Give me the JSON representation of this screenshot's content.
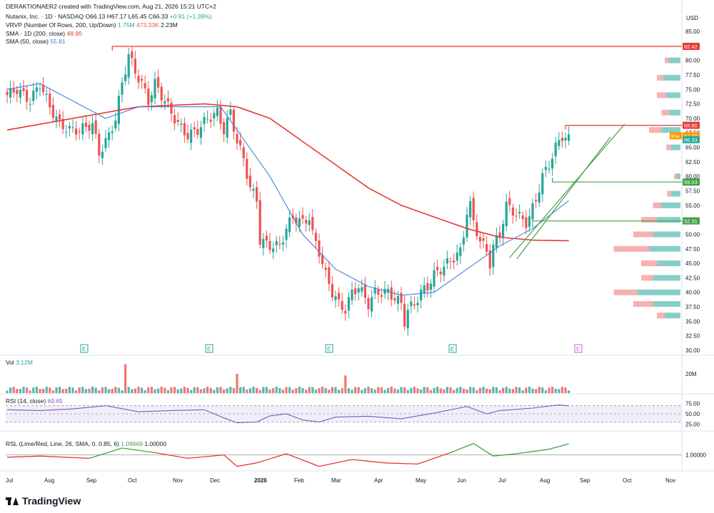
{
  "header": {
    "created_line": "DERAKTIONAER2 created with TradingView.com, Aug 21, 2026 15:21 UTC+2",
    "symbol_line": "Nutanix, Inc. · 1D · NASDAQ",
    "ohlc": {
      "open": "O66.13",
      "high": "H67.17",
      "low": "L65.45",
      "close": "C66.33",
      "change": "+0.91 (+1.39%)"
    },
    "vrvp_label": "VRVP (Number Of Rows, 200, Up/Down)",
    "vrvp_up": "1.75M",
    "vrvp_down": "473.33K",
    "vrvp_total": "2.23M",
    "sma200_label": "SMA · 1D (200, close)",
    "sma200_value": "48.90",
    "sma50_label": "SMA (50, close)",
    "sma50_value": "55.81"
  },
  "colors": {
    "up": "#26a69a",
    "down": "#ef5350",
    "sma200": "#e53935",
    "sma50": "#4a7fd6",
    "rsi": "#7e57c2",
    "rsl_up": "#43a047",
    "rsl_down": "#e53935",
    "level_red": "#e53935",
    "level_green": "#43a047",
    "pre": "#ff9800",
    "last": "#26a69a"
  },
  "price_axis": {
    "currency": "USD",
    "ticks": [
      "85.00",
      "82.50",
      "80.00",
      "77.50",
      "75.00",
      "72.50",
      "70.00",
      "67.50",
      "65.00",
      "62.50",
      "60.00",
      "57.50",
      "55.00",
      "52.50",
      "50.00",
      "47.50",
      "45.00",
      "42.50",
      "40.00",
      "37.50",
      "35.00",
      "32.50",
      "30.00"
    ],
    "badges": [
      {
        "label": "82.42",
        "value": 82.42,
        "kind": "red"
      },
      {
        "label": "68.80",
        "value": 68.8,
        "kind": "red"
      },
      {
        "label": "67.00",
        "value": 67.0,
        "kind": "pre",
        "tag": "Pre"
      },
      {
        "label": "66.33",
        "value": 66.33,
        "kind": "last"
      },
      {
        "label": "59.03",
        "value": 59.03,
        "kind": "green"
      },
      {
        "label": "52.31",
        "value": 52.31,
        "kind": "green"
      }
    ]
  },
  "time_axis": [
    "Jul",
    "Aug",
    "Sep",
    "Oct",
    "Nov",
    "Dec",
    "2026",
    "Feb",
    "Mar",
    "Apr",
    "May",
    "Jun",
    "Jul",
    "Aug",
    "Sep",
    "Oct",
    "Nov"
  ],
  "earnings_markers": [
    "E",
    "E",
    "E",
    "E",
    "E"
  ],
  "volume": {
    "label": "Vol",
    "value": "3.12M",
    "axis_tick": "20M"
  },
  "rsi": {
    "label": "RSI (14, close)",
    "value": "69.65",
    "ticks": [
      "75.00",
      "50.00",
      "25.00"
    ],
    "upper": 70,
    "lower": 30
  },
  "rsl": {
    "label": "RSL (Lime/Red, Line, 26, SMA, 0, 0.85, 6)",
    "value1": "1.09669",
    "value2": "1.00000",
    "tick": "1.00000"
  },
  "footer": {
    "brand": "TradingView"
  },
  "chart_data": {
    "type": "candlestick",
    "title": "Nutanix, Inc. · 1D · NASDAQ",
    "ylim": [
      30,
      86
    ],
    "x": [
      "2025-07",
      "2025-08",
      "2025-09",
      "2025-10",
      "2025-11",
      "2025-12",
      "2026-01",
      "2026-02",
      "2026-03",
      "2026-04",
      "2026-05",
      "2026-06",
      "2026-07",
      "2026-08"
    ],
    "close_path": [
      [
        0,
        74
      ],
      [
        3,
        75
      ],
      [
        7,
        73
      ],
      [
        10,
        76
      ],
      [
        13,
        72
      ],
      [
        16,
        69
      ],
      [
        19,
        68
      ],
      [
        22,
        68
      ],
      [
        26,
        69
      ],
      [
        28,
        64
      ],
      [
        31,
        67
      ],
      [
        33,
        70
      ],
      [
        35,
        76
      ],
      [
        37,
        81
      ],
      [
        39,
        78
      ],
      [
        41,
        76
      ],
      [
        43,
        73
      ],
      [
        45,
        76
      ],
      [
        47,
        74
      ],
      [
        49,
        72
      ],
      [
        52,
        69
      ],
      [
        55,
        67
      ],
      [
        58,
        68
      ],
      [
        61,
        70
      ],
      [
        64,
        71
      ],
      [
        66,
        68
      ],
      [
        68,
        71
      ],
      [
        70,
        66
      ],
      [
        72,
        63
      ],
      [
        74,
        58
      ],
      [
        76,
        56
      ],
      [
        77,
        49
      ],
      [
        80,
        48
      ],
      [
        83,
        48
      ],
      [
        85,
        51
      ],
      [
        87,
        53
      ],
      [
        90,
        52
      ],
      [
        92,
        53
      ],
      [
        93,
        50
      ],
      [
        95,
        47
      ],
      [
        97,
        43
      ],
      [
        99,
        40
      ],
      [
        101,
        38
      ],
      [
        103,
        37
      ],
      [
        105,
        40
      ],
      [
        107,
        41
      ],
      [
        110,
        38
      ],
      [
        112,
        40
      ],
      [
        114,
        40
      ],
      [
        116,
        40
      ],
      [
        118,
        39
      ],
      [
        120,
        38
      ],
      [
        121,
        35
      ],
      [
        122,
        37
      ],
      [
        124,
        38
      ],
      [
        126,
        40
      ],
      [
        128,
        41
      ],
      [
        130,
        43
      ],
      [
        132,
        44
      ],
      [
        134,
        45
      ],
      [
        136,
        46
      ],
      [
        138,
        47
      ],
      [
        139,
        50
      ],
      [
        140,
        54
      ],
      [
        141,
        55
      ],
      [
        142,
        52
      ],
      [
        144,
        49
      ],
      [
        146,
        47
      ],
      [
        147,
        45
      ],
      [
        148,
        48
      ],
      [
        150,
        50
      ],
      [
        152,
        55
      ],
      [
        154,
        54
      ],
      [
        156,
        53
      ],
      [
        158,
        52
      ],
      [
        159,
        53
      ],
      [
        161,
        56
      ],
      [
        163,
        60
      ],
      [
        165,
        62
      ],
      [
        167,
        65
      ],
      [
        169,
        67
      ],
      [
        171,
        66.33
      ]
    ],
    "sma200": [
      [
        0,
        68
      ],
      [
        20,
        70
      ],
      [
        40,
        72
      ],
      [
        60,
        72.5
      ],
      [
        70,
        72
      ],
      [
        80,
        70
      ],
      [
        90,
        66
      ],
      [
        100,
        62
      ],
      [
        110,
        58
      ],
      [
        120,
        55
      ],
      [
        130,
        53
      ],
      [
        140,
        51
      ],
      [
        150,
        49.5
      ],
      [
        160,
        49
      ],
      [
        171,
        48.9
      ]
    ],
    "sma50": [
      [
        0,
        75
      ],
      [
        10,
        76
      ],
      [
        20,
        73
      ],
      [
        30,
        70
      ],
      [
        40,
        72
      ],
      [
        50,
        72
      ],
      [
        60,
        72
      ],
      [
        65,
        72
      ],
      [
        70,
        68
      ],
      [
        80,
        60
      ],
      [
        90,
        50
      ],
      [
        100,
        44
      ],
      [
        110,
        41
      ],
      [
        120,
        39.5
      ],
      [
        130,
        40
      ],
      [
        140,
        44
      ],
      [
        150,
        48
      ],
      [
        160,
        51
      ],
      [
        171,
        55.81
      ]
    ],
    "levels": [
      {
        "name": "resistance",
        "y": 82.42,
        "x_start": 32
      },
      {
        "name": "recent-high",
        "y": 68.8,
        "x_start": 170
      },
      {
        "name": "support-1",
        "y": 59.03,
        "x_start": 166
      },
      {
        "name": "support-2",
        "y": 52.31,
        "x_start": 160
      }
    ],
    "trendline": {
      "from": [
        153,
        46
      ],
      "to": [
        188,
        69
      ]
    },
    "rsi_path": [
      [
        0,
        60
      ],
      [
        10,
        58
      ],
      [
        20,
        62
      ],
      [
        30,
        70
      ],
      [
        40,
        55
      ],
      [
        50,
        58
      ],
      [
        60,
        60
      ],
      [
        66,
        40
      ],
      [
        70,
        28
      ],
      [
        76,
        30
      ],
      [
        80,
        45
      ],
      [
        85,
        50
      ],
      [
        90,
        35
      ],
      [
        95,
        30
      ],
      [
        100,
        42
      ],
      [
        110,
        44
      ],
      [
        120,
        38
      ],
      [
        130,
        52
      ],
      [
        140,
        68
      ],
      [
        146,
        50
      ],
      [
        150,
        58
      ],
      [
        160,
        64
      ],
      [
        168,
        72
      ],
      [
        171,
        69.65
      ]
    ],
    "rsl_path": [
      [
        0,
        0.98
      ],
      [
        10,
        0.99
      ],
      [
        25,
        0.97
      ],
      [
        35,
        1.06
      ],
      [
        45,
        1.02
      ],
      [
        55,
        0.97
      ],
      [
        66,
        1.0
      ],
      [
        70,
        0.9
      ],
      [
        76,
        0.93
      ],
      [
        85,
        1.01
      ],
      [
        95,
        0.9
      ],
      [
        105,
        0.96
      ],
      [
        115,
        0.93
      ],
      [
        125,
        0.92
      ],
      [
        135,
        1.02
      ],
      [
        142,
        1.1
      ],
      [
        148,
        0.99
      ],
      [
        155,
        1.01
      ],
      [
        165,
        1.05
      ],
      [
        171,
        1.09669
      ]
    ],
    "volume_spikes": [
      {
        "i": 36,
        "v": 0.9
      },
      {
        "i": 70,
        "v": 0.6
      },
      {
        "i": 103,
        "v": 0.55
      }
    ],
    "profile": [
      {
        "price": 80,
        "up": 0.15,
        "down": 0.05
      },
      {
        "price": 77,
        "up": 0.22,
        "down": 0.08
      },
      {
        "price": 74,
        "up": 0.18,
        "down": 0.12
      },
      {
        "price": 71,
        "up": 0.14,
        "down": 0.1
      },
      {
        "price": 68,
        "up": 0.25,
        "down": 0.15
      },
      {
        "price": 65,
        "up": 0.12,
        "down": 0.06
      },
      {
        "price": 60,
        "up": 0.05,
        "down": 0.03
      },
      {
        "price": 57,
        "up": 0.12,
        "down": 0.05
      },
      {
        "price": 55,
        "up": 0.25,
        "down": 0.1
      },
      {
        "price": 52.5,
        "up": 0.3,
        "down": 0.2
      },
      {
        "price": 50,
        "up": 0.35,
        "down": 0.25
      },
      {
        "price": 47.5,
        "up": 0.4,
        "down": 0.45
      },
      {
        "price": 45,
        "up": 0.3,
        "down": 0.2
      },
      {
        "price": 42.5,
        "up": 0.35,
        "down": 0.15
      },
      {
        "price": 40,
        "up": 0.55,
        "down": 0.3
      },
      {
        "price": 38,
        "up": 0.35,
        "down": 0.25
      },
      {
        "price": 36,
        "up": 0.2,
        "down": 0.1
      }
    ]
  }
}
